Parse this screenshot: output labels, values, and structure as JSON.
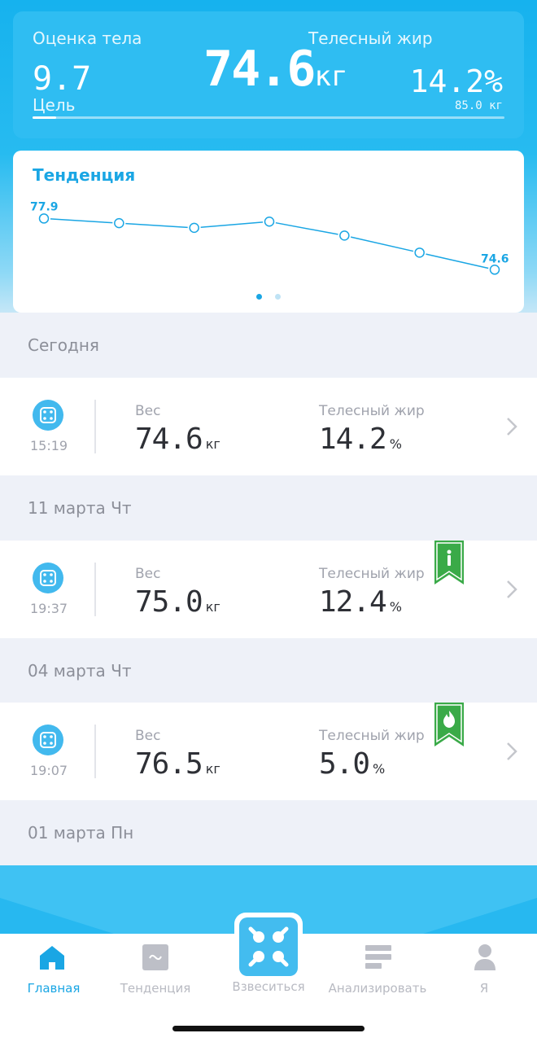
{
  "summary": {
    "score_label": "Оценка тела",
    "score_value": "9.7",
    "weight_value": "74.6",
    "weight_unit": "кг",
    "fat_label": "Телесный жир",
    "fat_value": "14.2%",
    "goal_label": "Цель",
    "goal_value": "85.0 кг",
    "goal_progress": 0.05
  },
  "trend": {
    "title": "Тенденция",
    "first_label": "77.9",
    "last_label": "74.6",
    "values": [
      77.9,
      77.6,
      77.3,
      77.7,
      76.8,
      75.7,
      74.6
    ],
    "page_count": 2,
    "active_page": 0
  },
  "sections": [
    {
      "date": "Сегодня",
      "entries": [
        {
          "time": "15:19",
          "weight_label": "Вес",
          "weight": "74.6",
          "weight_unit": "кг",
          "fat_label": "Телесный жир",
          "fat": "14.2",
          "fat_unit": "%",
          "badge": ""
        }
      ]
    },
    {
      "date": "11 марта Чт",
      "entries": [
        {
          "time": "19:37",
          "weight_label": "Вес",
          "weight": "75.0",
          "weight_unit": "кг",
          "fat_label": "Телесный жир",
          "fat": "12.4",
          "fat_unit": "%",
          "badge": "person-icon"
        }
      ]
    },
    {
      "date": "04 марта Чт",
      "entries": [
        {
          "time": "19:07",
          "weight_label": "Вес",
          "weight": "76.5",
          "weight_unit": "кг",
          "fat_label": "Телесный жир",
          "fat": "5.0",
          "fat_unit": "%",
          "badge": "flame-icon"
        }
      ]
    },
    {
      "date": "01 марта Пн",
      "entries": []
    }
  ],
  "tabs": [
    {
      "label": "Главная",
      "icon": "home-icon",
      "active": true
    },
    {
      "label": "Тенденция",
      "icon": "trend-icon",
      "active": false
    },
    {
      "label": "Взвеситься",
      "icon": "scale-icon",
      "active": false
    },
    {
      "label": "Анализировать",
      "icon": "analyze-icon",
      "active": false
    },
    {
      "label": "Я",
      "icon": "profile-icon",
      "active": false
    }
  ],
  "colors": {
    "accent": "#1aa6e4",
    "header_blue": "#2fbdf2",
    "badge_green": "#3aaa48"
  }
}
